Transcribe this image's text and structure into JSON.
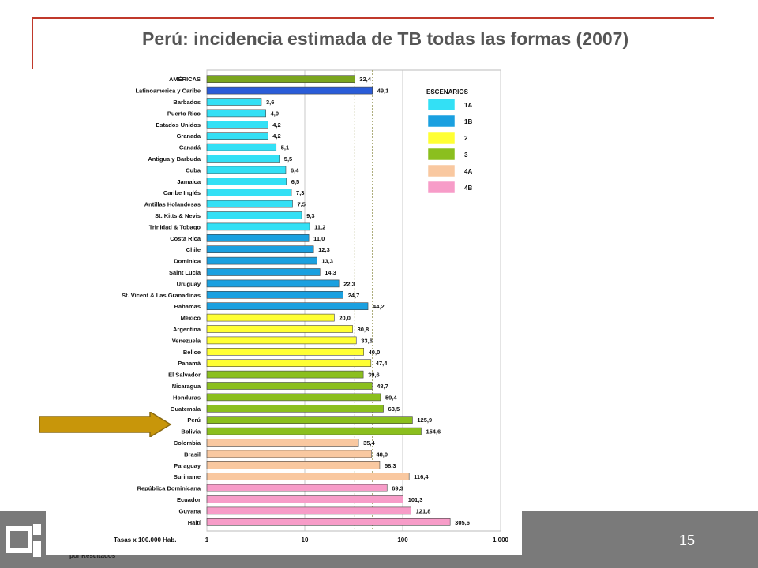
{
  "slide": {
    "title": "Perú: incidencia estimada de TB todas las formas (2007)",
    "page_number": "15",
    "footer_logo_text": "por Resultados"
  },
  "colors": {
    "1A": "#33e0f5",
    "1B": "#1aa0e0",
    "2": "#ffff33",
    "3": "#8bbf1e",
    "4A": "#f9c8a0",
    "4B": "#f79cc8",
    "americas": "#7aa51e",
    "latam": "#2a5cd8",
    "accent_red": "#c0392b",
    "arrow": "#c8960a"
  },
  "chart_data": {
    "type": "bar",
    "orientation": "horizontal",
    "x_scale": "log",
    "xlim": [
      1,
      1000
    ],
    "xticks": [
      "1",
      "10",
      "100",
      "1.000"
    ],
    "xlabel": "Tasas x 100.000 Hab.",
    "reference_lines": [
      32.4,
      49.1
    ],
    "legend": {
      "title": "ESCENARIOS",
      "position": "top-right",
      "entries": [
        {
          "key": "1A",
          "label": "1A"
        },
        {
          "key": "1B",
          "label": "1B"
        },
        {
          "key": "2",
          "label": "2"
        },
        {
          "key": "3",
          "label": "3"
        },
        {
          "key": "4A",
          "label": "4A"
        },
        {
          "key": "4B",
          "label": "4B"
        }
      ]
    },
    "bars": [
      {
        "label": "AMÉRICAS",
        "value": 32.4,
        "value_label": "32,4",
        "group": "americas"
      },
      {
        "label": "Latinoamerica y Caribe",
        "value": 49.1,
        "value_label": "49,1",
        "group": "latam"
      },
      {
        "label": "Barbados",
        "value": 3.6,
        "value_label": "3,6",
        "group": "1A"
      },
      {
        "label": "Puerto Rico",
        "value": 4.0,
        "value_label": "4,0",
        "group": "1A"
      },
      {
        "label": "Estados Unidos",
        "value": 4.2,
        "value_label": "4,2",
        "group": "1A"
      },
      {
        "label": "Granada",
        "value": 4.2,
        "value_label": "4,2",
        "group": "1A"
      },
      {
        "label": "Canadá",
        "value": 5.1,
        "value_label": "5,1",
        "group": "1A"
      },
      {
        "label": "Antigua y Barbuda",
        "value": 5.5,
        "value_label": "5,5",
        "group": "1A"
      },
      {
        "label": "Cuba",
        "value": 6.4,
        "value_label": "6,4",
        "group": "1A"
      },
      {
        "label": "Jamaica",
        "value": 6.5,
        "value_label": "6,5",
        "group": "1A"
      },
      {
        "label": "Caribe Inglés",
        "value": 7.3,
        "value_label": "7,3",
        "group": "1A"
      },
      {
        "label": "Antillas Holandesas",
        "value": 7.5,
        "value_label": "7,5",
        "group": "1A"
      },
      {
        "label": "St. Kitts & Nevis",
        "value": 9.3,
        "value_label": "9,3",
        "group": "1A"
      },
      {
        "label": "Trinidad & Tobago",
        "value": 11.2,
        "value_label": "11,2",
        "group": "1A"
      },
      {
        "label": "Costa Rica",
        "value": 11.0,
        "value_label": "11,0",
        "group": "1B"
      },
      {
        "label": "Chile",
        "value": 12.3,
        "value_label": "12,3",
        "group": "1B"
      },
      {
        "label": "Dominica",
        "value": 13.3,
        "value_label": "13,3",
        "group": "1B"
      },
      {
        "label": "Saint Lucia",
        "value": 14.3,
        "value_label": "14,3",
        "group": "1B"
      },
      {
        "label": "Uruguay",
        "value": 22.3,
        "value_label": "22,3",
        "group": "1B"
      },
      {
        "label": "St. Vicent & Las Granadinas",
        "value": 24.7,
        "value_label": "24,7",
        "group": "1B"
      },
      {
        "label": "Bahamas",
        "value": 44.2,
        "value_label": "44,2",
        "group": "1B"
      },
      {
        "label": "México",
        "value": 20.0,
        "value_label": "20,0",
        "group": "2"
      },
      {
        "label": "Argentina",
        "value": 30.8,
        "value_label": "30,8",
        "group": "2"
      },
      {
        "label": "Venezuela",
        "value": 33.6,
        "value_label": "33,6",
        "group": "2"
      },
      {
        "label": "Belice",
        "value": 40.0,
        "value_label": "40,0",
        "group": "2"
      },
      {
        "label": "Panamá",
        "value": 47.4,
        "value_label": "47,4",
        "group": "2"
      },
      {
        "label": "El Salvador",
        "value": 39.6,
        "value_label": "39,6",
        "group": "3"
      },
      {
        "label": "Nicaragua",
        "value": 48.7,
        "value_label": "48,7",
        "group": "3"
      },
      {
        "label": "Honduras",
        "value": 59.4,
        "value_label": "59,4",
        "group": "3"
      },
      {
        "label": "Guatemala",
        "value": 63.5,
        "value_label": "63,5",
        "group": "3"
      },
      {
        "label": "Perú",
        "value": 125.9,
        "value_label": "125,9",
        "group": "3"
      },
      {
        "label": "Bolivia",
        "value": 154.6,
        "value_label": "154,6",
        "group": "3"
      },
      {
        "label": "Colombia",
        "value": 35.4,
        "value_label": "35,4",
        "group": "4A"
      },
      {
        "label": "Brasil",
        "value": 48.0,
        "value_label": "48,0",
        "group": "4A"
      },
      {
        "label": "Paraguay",
        "value": 58.3,
        "value_label": "58,3",
        "group": "4A"
      },
      {
        "label": "Suriname",
        "value": 116.4,
        "value_label": "116,4",
        "group": "4A"
      },
      {
        "label": "República Dominicana",
        "value": 69.3,
        "value_label": "69,3",
        "group": "4B"
      },
      {
        "label": "Ecuador",
        "value": 101.3,
        "value_label": "101,3",
        "group": "4B"
      },
      {
        "label": "Guyana",
        "value": 121.8,
        "value_label": "121,8",
        "group": "4B"
      },
      {
        "label": "Haití",
        "value": 305.6,
        "value_label": "305,6",
        "group": "4B"
      }
    ],
    "highlight": "Perú"
  }
}
